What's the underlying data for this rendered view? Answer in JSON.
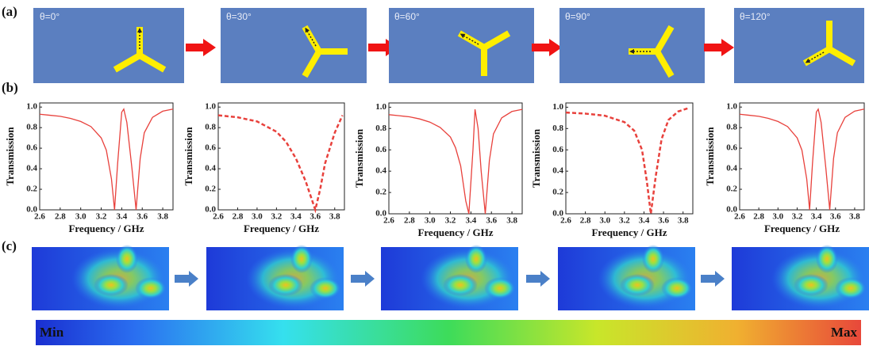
{
  "panel_labels": [
    "(a)",
    "(b)",
    "(c)"
  ],
  "states": [
    "θ=0°",
    "θ=30°",
    "θ=60°",
    "θ=90°",
    "θ=120°"
  ],
  "colorbar": {
    "min_label": "Min",
    "max_label": "Max"
  },
  "chart_data": [
    {
      "type": "line",
      "xlabel": "Frequency / GHz",
      "ylabel": "Transmission",
      "x": [
        2.6,
        2.7,
        2.8,
        2.9,
        3.0,
        3.1,
        3.2,
        3.25,
        3.3,
        3.33,
        3.36,
        3.4,
        3.42,
        3.45,
        3.5,
        3.54,
        3.58,
        3.62,
        3.7,
        3.8,
        3.9
      ],
      "series": [
        {
          "color": "#e8413c",
          "line_style": "solid",
          "values": [
            0.93,
            0.92,
            0.91,
            0.89,
            0.86,
            0.81,
            0.7,
            0.58,
            0.3,
            0.0,
            0.45,
            0.95,
            0.98,
            0.85,
            0.4,
            0.0,
            0.5,
            0.75,
            0.9,
            0.96,
            0.98
          ]
        }
      ],
      "xlim": [
        2.6,
        3.9
      ],
      "ylim": [
        0,
        1.04
      ],
      "xticks": [
        2.6,
        2.8,
        {
          "value": 3,
          "label": "3.0"
        },
        3.2,
        3.4,
        3.6,
        3.8
      ],
      "yticks": [
        {
          "value": 0,
          "label": "0.0"
        },
        0.2,
        0.4,
        0.6,
        0.8,
        {
          "value": 1,
          "label": "1.0"
        }
      ]
    },
    {
      "type": "line",
      "xlabel": "Frequency / GHz",
      "ylabel": "Transmission",
      "x": [
        2.6,
        2.8,
        3.0,
        3.2,
        3.3,
        3.4,
        3.5,
        3.55,
        3.6,
        3.65,
        3.7,
        3.8,
        3.88
      ],
      "series": [
        {
          "color": "#e8413c",
          "line_style": "dashed",
          "values": [
            0.92,
            0.9,
            0.86,
            0.76,
            0.66,
            0.5,
            0.28,
            0.14,
            0.0,
            0.2,
            0.45,
            0.75,
            0.92
          ]
        }
      ],
      "xlim": [
        2.6,
        3.9
      ],
      "ylim": [
        0,
        1.04
      ],
      "xticks": [
        2.6,
        2.8,
        {
          "value": 3,
          "label": "3.0"
        },
        3.2,
        3.4,
        3.6,
        3.8
      ],
      "yticks": [
        {
          "value": 0,
          "label": "0.0"
        },
        0.2,
        0.4,
        0.6,
        0.8,
        {
          "value": 1,
          "label": "1.0"
        }
      ]
    },
    {
      "type": "line",
      "xlabel": "Frequency / GHz",
      "ylabel": "Transmission",
      "x": [
        2.6,
        2.7,
        2.8,
        2.9,
        3.0,
        3.1,
        3.2,
        3.25,
        3.3,
        3.35,
        3.38,
        3.42,
        3.44,
        3.47,
        3.5,
        3.54,
        3.58,
        3.62,
        3.7,
        3.8,
        3.9
      ],
      "series": [
        {
          "color": "#e8413c",
          "line_style": "solid",
          "values": [
            0.93,
            0.92,
            0.91,
            0.89,
            0.86,
            0.81,
            0.72,
            0.62,
            0.45,
            0.12,
            0.0,
            0.6,
            0.98,
            0.8,
            0.4,
            0.0,
            0.5,
            0.75,
            0.9,
            0.96,
            0.98
          ]
        }
      ],
      "xlim": [
        2.6,
        3.9
      ],
      "ylim": [
        0,
        1.04
      ],
      "xticks": [
        2.6,
        2.8,
        {
          "value": 3,
          "label": "3.0"
        },
        3.2,
        3.4,
        3.6,
        3.8
      ],
      "yticks": [
        {
          "value": 0,
          "label": "0.0"
        },
        0.2,
        0.4,
        0.6,
        0.8,
        {
          "value": 1,
          "label": "1.0"
        }
      ]
    },
    {
      "type": "line",
      "xlabel": "Frequency / GHz",
      "ylabel": "Transmission",
      "x": [
        2.6,
        2.8,
        3.0,
        3.2,
        3.3,
        3.38,
        3.43,
        3.47,
        3.52,
        3.58,
        3.65,
        3.75,
        3.85
      ],
      "series": [
        {
          "color": "#e8413c",
          "line_style": "dashed",
          "values": [
            0.95,
            0.94,
            0.92,
            0.86,
            0.78,
            0.6,
            0.3,
            0.0,
            0.35,
            0.7,
            0.88,
            0.96,
            0.99
          ]
        }
      ],
      "xlim": [
        2.6,
        3.9
      ],
      "ylim": [
        0,
        1.04
      ],
      "xticks": [
        2.6,
        2.8,
        {
          "value": 3,
          "label": "3.0"
        },
        3.2,
        3.4,
        3.6,
        3.8
      ],
      "yticks": [
        {
          "value": 0,
          "label": "0.0"
        },
        0.2,
        0.4,
        0.6,
        0.8,
        {
          "value": 1,
          "label": "1.0"
        }
      ]
    },
    {
      "type": "line",
      "xlabel": "Frequency / GHz",
      "ylabel": "Transmission",
      "x": [
        2.6,
        2.7,
        2.8,
        2.9,
        3.0,
        3.1,
        3.2,
        3.25,
        3.3,
        3.33,
        3.36,
        3.4,
        3.42,
        3.45,
        3.5,
        3.54,
        3.58,
        3.62,
        3.7,
        3.8,
        3.9
      ],
      "series": [
        {
          "color": "#e8413c",
          "line_style": "solid",
          "values": [
            0.93,
            0.92,
            0.91,
            0.89,
            0.86,
            0.81,
            0.7,
            0.58,
            0.3,
            0.0,
            0.45,
            0.95,
            0.98,
            0.85,
            0.4,
            0.0,
            0.5,
            0.75,
            0.9,
            0.96,
            0.98
          ]
        }
      ],
      "xlim": [
        2.6,
        3.9
      ],
      "ylim": [
        0,
        1.04
      ],
      "xticks": [
        2.6,
        2.8,
        {
          "value": 3,
          "label": "3.0"
        },
        3.2,
        3.4,
        3.6,
        3.8
      ],
      "yticks": [
        {
          "value": 0,
          "label": "0.0"
        },
        0.2,
        0.4,
        0.6,
        0.8,
        {
          "value": 1,
          "label": "1.0"
        }
      ]
    }
  ]
}
